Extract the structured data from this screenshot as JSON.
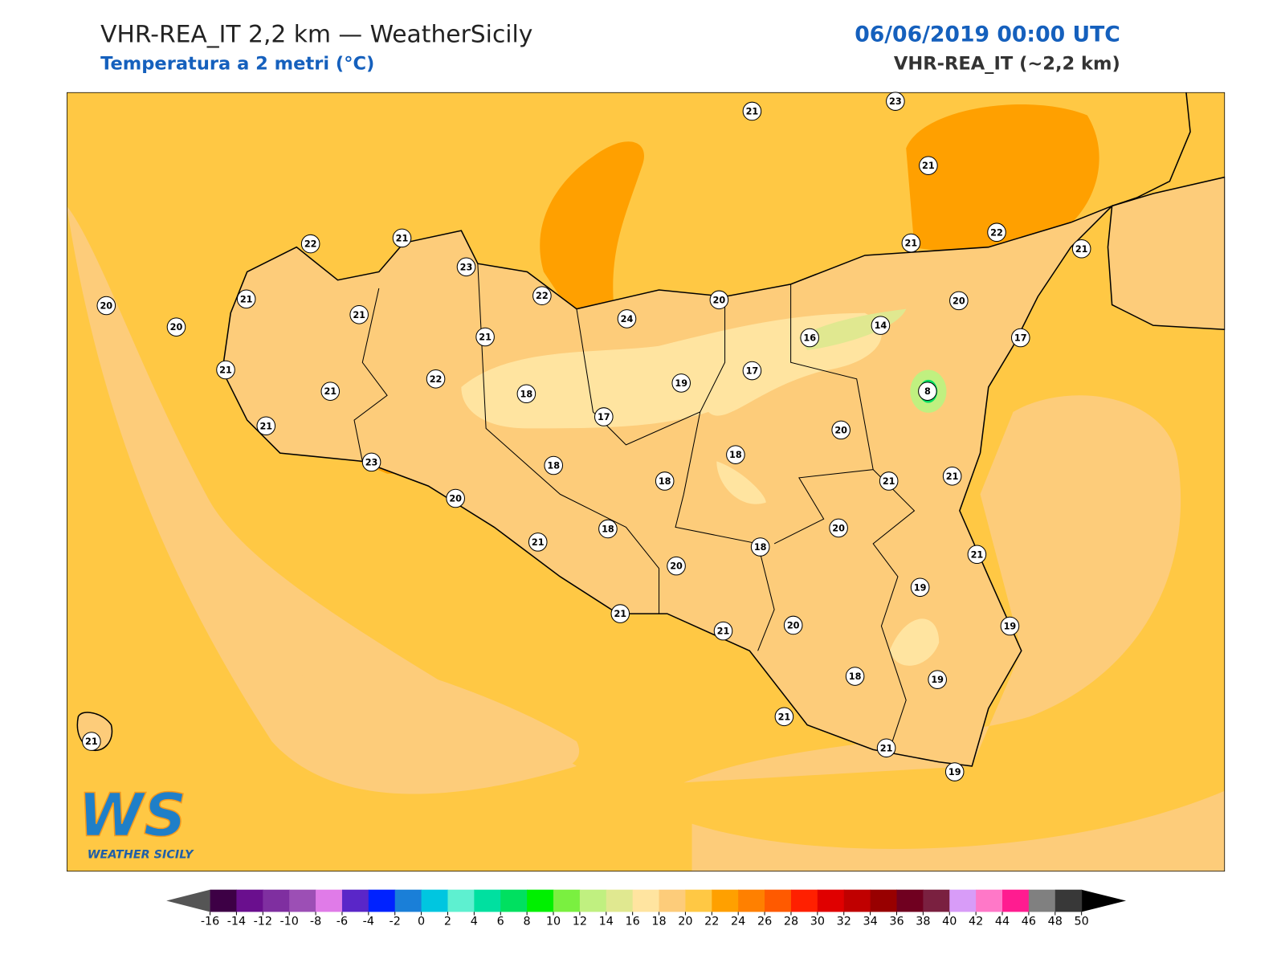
{
  "header": {
    "title": "VHR-REA_IT 2,2 km — WeatherSicily",
    "subtitle": "Temperatura a 2 metri (°C)",
    "datetime": "06/06/2019 00:00 UTC",
    "model": "VHR-REA_IT (~2,2 km)"
  },
  "logo": {
    "mark": "WS",
    "name": "WEATHER SICILY"
  },
  "map": {
    "sea_color": "#ffc844",
    "land_color": "#fdcc7a",
    "warm_color": "#ffa000",
    "cool_color": "#ffe4a0",
    "stations": [
      21,
      23,
      21,
      22,
      21,
      23,
      22,
      24,
      20,
      21,
      22,
      21,
      20,
      20,
      20,
      21,
      21,
      21,
      16,
      14,
      17,
      21,
      21,
      22,
      18,
      19,
      17,
      8,
      17,
      21,
      20,
      23,
      18,
      18,
      18,
      21,
      21,
      20,
      20,
      21,
      18,
      18,
      20,
      21,
      19,
      21,
      21,
      20,
      19,
      18,
      19,
      21,
      21,
      19,
      21
    ]
  },
  "colorbar": {
    "ticks": [
      -16,
      -14,
      -12,
      -10,
      -8,
      -6,
      -4,
      -2,
      0,
      2,
      4,
      6,
      8,
      10,
      12,
      14,
      16,
      18,
      20,
      22,
      24,
      26,
      28,
      30,
      32,
      34,
      36,
      38,
      40,
      42,
      44,
      46,
      48,
      50
    ],
    "colors": [
      "#3d0045",
      "#6a0f8e",
      "#7f2fa0",
      "#9c4fb5",
      "#e07be8",
      "#5a26c8",
      "#0022ff",
      "#1a7fd8",
      "#00c6e0",
      "#5ef0d0",
      "#00e0a0",
      "#00e060",
      "#00f000",
      "#7af040",
      "#c0f080",
      "#e0e890",
      "#ffe4a0",
      "#fdcc7a",
      "#ffc844",
      "#ffa000",
      "#ff8000",
      "#ff5a00",
      "#ff2000",
      "#e00000",
      "#c00000",
      "#980000",
      "#700020",
      "#7a2040",
      "#d89cf8",
      "#ff78c8",
      "#ff1c90",
      "#808080",
      "#383838"
    ],
    "under_color": "#555555",
    "over_color": "#000000"
  }
}
